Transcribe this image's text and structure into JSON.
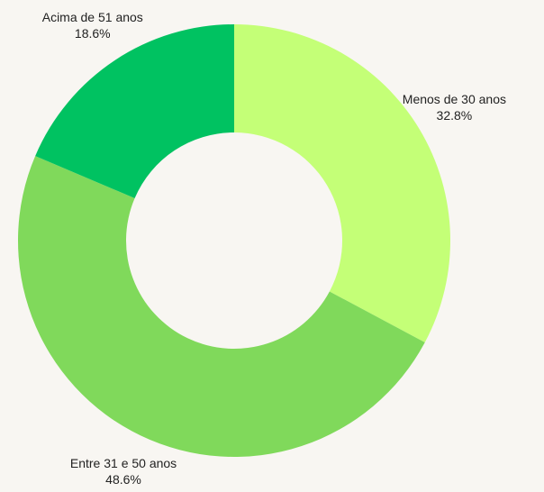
{
  "chart_data": {
    "type": "donut",
    "categories": [
      "Menos de 30 anos",
      "Entre 31 e 50 anos",
      "Acima de 51 anos"
    ],
    "values": [
      32.8,
      48.6,
      18.6
    ],
    "value_labels": [
      "32.8%",
      "48.6%",
      "18.6%"
    ],
    "colors": [
      "#c4ff77",
      "#80d95b",
      "#00c261"
    ]
  }
}
